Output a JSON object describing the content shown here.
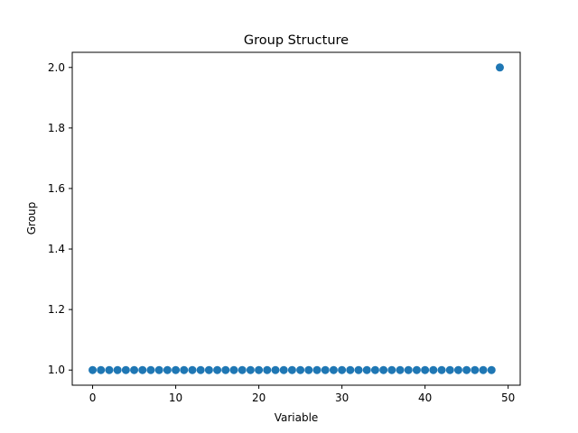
{
  "chart_data": {
    "type": "scatter",
    "title": "Group Structure",
    "xlabel": "Variable",
    "ylabel": "Group",
    "xlim": [
      -2.45,
      51.45
    ],
    "ylim": [
      0.95,
      2.05
    ],
    "xticks": [
      0,
      10,
      20,
      30,
      40,
      50
    ],
    "xtick_labels": [
      "0",
      "10",
      "20",
      "30",
      "40",
      "50"
    ],
    "yticks": [
      1.0,
      1.2,
      1.4,
      1.6,
      1.8,
      2.0
    ],
    "ytick_labels": [
      "1.0",
      "1.2",
      "1.4",
      "1.6",
      "1.8",
      "2.0"
    ],
    "grid": false,
    "legend": false,
    "marker_color": "#1f77b4",
    "x": [
      0,
      1,
      2,
      3,
      4,
      5,
      6,
      7,
      8,
      9,
      10,
      11,
      12,
      13,
      14,
      15,
      16,
      17,
      18,
      19,
      20,
      21,
      22,
      23,
      24,
      25,
      26,
      27,
      28,
      29,
      30,
      31,
      32,
      33,
      34,
      35,
      36,
      37,
      38,
      39,
      40,
      41,
      42,
      43,
      44,
      45,
      46,
      47,
      48,
      49
    ],
    "y": [
      1,
      1,
      1,
      1,
      1,
      1,
      1,
      1,
      1,
      1,
      1,
      1,
      1,
      1,
      1,
      1,
      1,
      1,
      1,
      1,
      1,
      1,
      1,
      1,
      1,
      1,
      1,
      1,
      1,
      1,
      1,
      1,
      1,
      1,
      1,
      1,
      1,
      1,
      1,
      1,
      1,
      1,
      1,
      1,
      1,
      1,
      1,
      1,
      1,
      2
    ]
  }
}
